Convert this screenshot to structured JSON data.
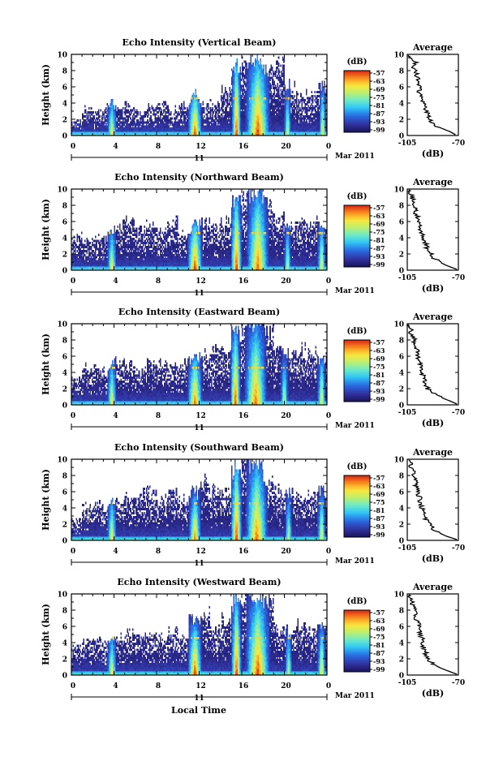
{
  "figure": {
    "xlabel": "Local Time",
    "y_tick_labels": [
      "0",
      "2",
      "4",
      "6",
      "8",
      "10"
    ],
    "x_tick_labels": [
      "0",
      "4",
      "8",
      "12",
      "16",
      "20",
      "0"
    ],
    "date_day": "11",
    "date_month_year": "Mar 2011",
    "colorbar_unit": "(dB)",
    "colorbar_ticks": [
      "-57",
      "-63",
      "-69",
      "-75",
      "-81",
      "-87",
      "-93",
      "-99"
    ],
    "avg_title": "Average",
    "avg_xlabel": "(dB)",
    "avg_x_ticks": [
      "-105",
      "-70"
    ],
    "ylabel": "Height (km)"
  },
  "chart_data": [
    {
      "type": "heatmap",
      "title": "Echo Intensity (Vertical Beam)",
      "xlabel": "Local Time",
      "ylabel": "Height (km)",
      "xlim": [
        0,
        24
      ],
      "ylim": [
        0,
        10
      ],
      "zlim": [
        -99,
        -57
      ],
      "zunit": "dB",
      "base_top_km": [
        2.0,
        3.4,
        3.0,
        3.6,
        3.3,
        3.8,
        3.0,
        3.6,
        3.9,
        3.4,
        3.8,
        3.3,
        3.9,
        4.2,
        5.8,
        7.8,
        10.0,
        8.6,
        8.4,
        8.8,
        6.2,
        5.0,
        5.4,
        6.3
      ],
      "showers": [
        {
          "t": 3.8,
          "w": 0.45,
          "top": 4.6,
          "peak": -66
        },
        {
          "t": 11.6,
          "w": 0.7,
          "top": 5.8,
          "peak": -58
        },
        {
          "t": 15.5,
          "w": 0.45,
          "top": 9.8,
          "peak": -57
        },
        {
          "t": 17.5,
          "w": 1.2,
          "top": 10,
          "peak": -58
        },
        {
          "t": 20.3,
          "w": 0.35,
          "top": 5.2,
          "peak": -68
        },
        {
          "t": 23.6,
          "w": 0.35,
          "top": 6.0,
          "peak": -66
        }
      ],
      "average_profile": {
        "height_km": [
          0.1,
          0.5,
          1,
          1.5,
          2,
          2.5,
          3,
          3.5,
          4,
          4.5,
          5,
          5.5,
          6,
          6.5,
          7,
          7.5,
          8,
          8.5,
          9,
          9.5,
          9.9
        ],
        "db": [
          -72,
          -76,
          -83,
          -88,
          -90,
          -91,
          -92,
          -93,
          -94,
          -95,
          -96,
          -97,
          -97,
          -98,
          -98,
          -99,
          -99,
          -101,
          -99,
          -103,
          -104
        ],
        "xlim": [
          -105,
          -70
        ]
      }
    },
    {
      "type": "heatmap",
      "title": "Echo Intensity (Northward Beam)",
      "xlabel": "Local Time",
      "ylabel": "Height (km)",
      "xlim": [
        0,
        24
      ],
      "ylim": [
        0,
        10
      ],
      "zlim": [
        -99,
        -57
      ],
      "zunit": "dB",
      "base_top_km": [
        4.5,
        3.6,
        4.2,
        4.8,
        5.6,
        6.0,
        5.2,
        5.6,
        4.8,
        6.2,
        4.6,
        5.0,
        5.8,
        5.6,
        6.1,
        8.4,
        10.0,
        9.6,
        8.4,
        6.6,
        5.8,
        6.6,
        5.5,
        6.1
      ],
      "showers": [
        {
          "t": 3.8,
          "w": 0.45,
          "top": 5.2,
          "peak": -66
        },
        {
          "t": 11.6,
          "w": 0.75,
          "top": 6.4,
          "peak": -57
        },
        {
          "t": 15.5,
          "w": 0.55,
          "top": 9.6,
          "peak": -57
        },
        {
          "t": 17.5,
          "w": 1.1,
          "top": 10,
          "peak": -60
        },
        {
          "t": 20.3,
          "w": 0.35,
          "top": 5.4,
          "peak": -70
        },
        {
          "t": 23.5,
          "w": 0.4,
          "top": 6.0,
          "peak": -66
        }
      ],
      "average_profile": {
        "height_km": [
          0.1,
          0.5,
          1,
          1.5,
          2,
          2.5,
          3,
          3.5,
          4,
          4.5,
          5,
          5.5,
          6,
          6.5,
          7,
          7.5,
          8,
          8.5,
          9,
          9.5,
          9.9
        ],
        "db": [
          -71,
          -77,
          -83,
          -87,
          -89,
          -91,
          -92,
          -93,
          -94,
          -95,
          -96,
          -97,
          -98,
          -98,
          -99,
          -100,
          -100,
          -101,
          -102,
          -103,
          -104
        ],
        "xlim": [
          -105,
          -70
        ]
      }
    },
    {
      "type": "heatmap",
      "title": "Echo Intensity (Eastward Beam)",
      "xlabel": "Local Time",
      "ylabel": "Height (km)",
      "xlim": [
        0,
        24
      ],
      "ylim": [
        0,
        10
      ],
      "zlim": [
        -99,
        -57
      ],
      "zunit": "dB",
      "base_top_km": [
        3.4,
        4.8,
        4.6,
        4.4,
        5.4,
        5.2,
        4.4,
        5.1,
        5.4,
        4.8,
        5.2,
        5.6,
        6.2,
        7.2,
        6.8,
        9.4,
        10.0,
        10.0,
        9.6,
        7.2,
        6.4,
        7.0,
        6.5,
        6.1
      ],
      "showers": [
        {
          "t": 3.8,
          "w": 0.45,
          "top": 5.6,
          "peak": -66
        },
        {
          "t": 11.6,
          "w": 0.75,
          "top": 6.5,
          "peak": -60
        },
        {
          "t": 15.4,
          "w": 0.5,
          "top": 9.8,
          "peak": -57
        },
        {
          "t": 17.3,
          "w": 1.1,
          "top": 10,
          "peak": -60
        },
        {
          "t": 20.0,
          "w": 0.4,
          "top": 5.8,
          "peak": -70
        },
        {
          "t": 23.5,
          "w": 0.4,
          "top": 6.4,
          "peak": -66
        }
      ],
      "average_profile": {
        "height_km": [
          0.1,
          0.5,
          1,
          1.5,
          2,
          2.5,
          3,
          3.5,
          4,
          4.5,
          5,
          5.5,
          6,
          6.5,
          7,
          7.5,
          8,
          8.5,
          9,
          9.5,
          9.9
        ],
        "db": [
          -71,
          -76,
          -83,
          -88,
          -91,
          -92,
          -93,
          -94,
          -95,
          -95,
          -96,
          -97,
          -98,
          -98,
          -99,
          -100,
          -100,
          -101,
          -103,
          -102,
          -104
        ],
        "xlim": [
          -105,
          -70
        ]
      }
    },
    {
      "type": "heatmap",
      "title": "Echo Intensity (Southward Beam)",
      "xlabel": "Local Time",
      "ylabel": "Height (km)",
      "xlim": [
        0,
        24
      ],
      "ylim": [
        0,
        10
      ],
      "zlim": [
        -99,
        -57
      ],
      "zunit": "dB",
      "base_top_km": [
        2.6,
        4.4,
        4.6,
        4.2,
        4.9,
        5.4,
        5.9,
        6.2,
        5.5,
        6.3,
        5.4,
        6.0,
        7.6,
        6.2,
        6.4,
        9.0,
        10.0,
        9.6,
        7.2,
        6.2,
        6.0,
        5.6,
        6.0,
        6.2
      ],
      "showers": [
        {
          "t": 3.8,
          "w": 0.45,
          "top": 5.4,
          "peak": -66
        },
        {
          "t": 11.6,
          "w": 0.6,
          "top": 5.8,
          "peak": -60
        },
        {
          "t": 15.5,
          "w": 0.55,
          "top": 10,
          "peak": -57
        },
        {
          "t": 17.4,
          "w": 1.1,
          "top": 10,
          "peak": -60
        },
        {
          "t": 20.4,
          "w": 0.35,
          "top": 5.4,
          "peak": -70
        },
        {
          "t": 23.5,
          "w": 0.4,
          "top": 6.0,
          "peak": -66
        }
      ],
      "average_profile": {
        "height_km": [
          0.1,
          0.5,
          1,
          1.5,
          2,
          2.5,
          3,
          3.5,
          4,
          4.5,
          5,
          5.5,
          6,
          6.5,
          7,
          7.5,
          8,
          8.5,
          9,
          9.5,
          9.9
        ],
        "db": [
          -71,
          -78,
          -84,
          -88,
          -90,
          -92,
          -93,
          -94,
          -95,
          -96,
          -96,
          -97,
          -98,
          -99,
          -99,
          -100,
          -101,
          -101,
          -103,
          -102,
          -104
        ],
        "xlim": [
          -105,
          -70
        ]
      }
    },
    {
      "type": "heatmap",
      "title": "Echo Intensity (Westward Beam)",
      "xlabel": "Local Time",
      "ylabel": "Height (km)",
      "xlim": [
        0,
        24
      ],
      "ylim": [
        0,
        10
      ],
      "zlim": [
        -99,
        -57
      ],
      "zunit": "dB",
      "base_top_km": [
        3.6,
        4.2,
        4.4,
        4.2,
        4.8,
        5.2,
        5.0,
        5.2,
        4.8,
        5.4,
        4.6,
        7.2,
        7.6,
        6.2,
        7.0,
        9.4,
        10.0,
        10.0,
        9.8,
        6.2,
        5.6,
        6.4,
        5.8,
        6.0
      ],
      "showers": [
        {
          "t": 3.8,
          "w": 0.45,
          "top": 5.0,
          "peak": -66
        },
        {
          "t": 11.6,
          "w": 0.7,
          "top": 6.6,
          "peak": -57
        },
        {
          "t": 15.5,
          "w": 0.5,
          "top": 10,
          "peak": -57
        },
        {
          "t": 17.5,
          "w": 1.2,
          "top": 10,
          "peak": -58
        },
        {
          "t": 20.4,
          "w": 0.35,
          "top": 5.4,
          "peak": -70
        },
        {
          "t": 23.5,
          "w": 0.4,
          "top": 6.2,
          "peak": -64
        }
      ],
      "average_profile": {
        "height_km": [
          0.1,
          0.5,
          1,
          1.5,
          2,
          2.5,
          3,
          3.5,
          4,
          4.5,
          5,
          5.5,
          6,
          6.5,
          7,
          7.5,
          8,
          8.5,
          9,
          9.5,
          9.9
        ],
        "db": [
          -71,
          -77,
          -84,
          -88,
          -91,
          -92,
          -93,
          -94,
          -95,
          -95,
          -96,
          -97,
          -97,
          -98,
          -99,
          -99,
          -100,
          -101,
          -102,
          -103,
          -104
        ],
        "xlim": [
          -105,
          -70
        ]
      }
    }
  ]
}
